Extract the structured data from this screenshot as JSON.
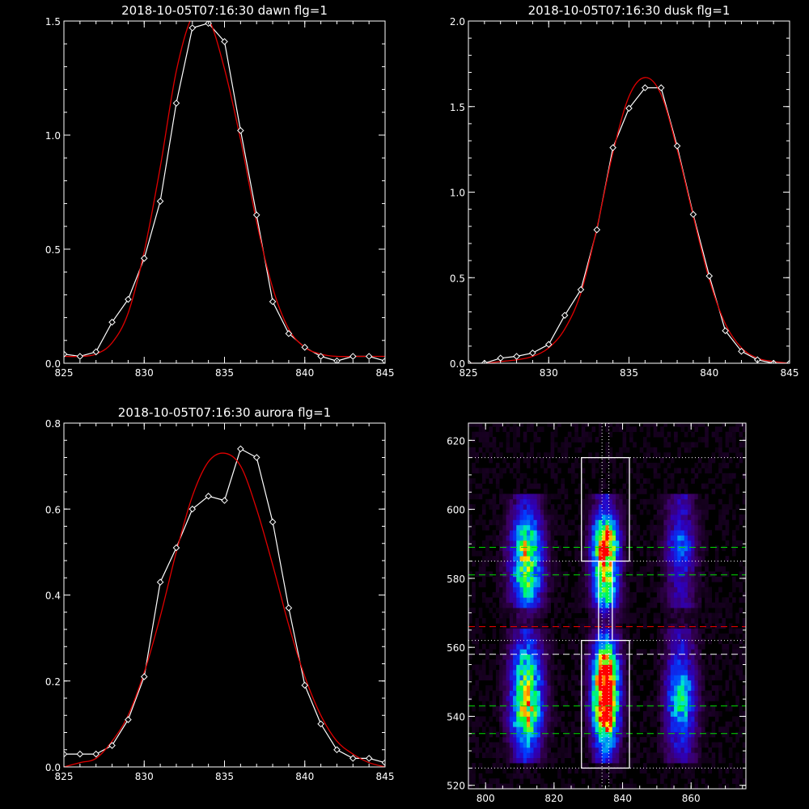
{
  "chart_data": [
    {
      "id": "dawn",
      "type": "line",
      "title": "2018-10-05T07:16:30 dawn flg=1",
      "xlim": [
        825,
        845
      ],
      "ylim": [
        0,
        1.5
      ],
      "xticks": [
        825,
        830,
        835,
        840,
        845
      ],
      "yticks": [
        0.0,
        0.5,
        1.0,
        1.5
      ],
      "ytick_labels": [
        "0.0",
        "0.5",
        "1.0",
        "1.5"
      ],
      "series": [
        {
          "role": "observed",
          "color": "#ffffff",
          "marker": "diamond",
          "x": [
            825,
            826,
            827,
            828,
            829,
            830,
            831,
            832,
            833,
            834,
            835,
            836,
            837,
            838,
            839,
            840,
            841,
            842,
            843,
            844,
            845
          ],
          "y": [
            0.04,
            0.03,
            0.05,
            0.18,
            0.28,
            0.46,
            0.71,
            1.14,
            1.47,
            1.49,
            1.41,
            1.02,
            0.65,
            0.27,
            0.13,
            0.07,
            0.03,
            0.01,
            0.03,
            0.03,
            0.01
          ]
        },
        {
          "role": "fit",
          "color": "#e00000",
          "x": [
            825,
            826,
            827,
            828,
            829,
            830,
            831,
            832,
            833,
            834,
            835,
            836,
            837,
            838,
            839,
            840,
            841,
            842,
            843,
            844,
            845
          ],
          "y": [
            0.03,
            0.03,
            0.04,
            0.09,
            0.22,
            0.49,
            0.86,
            1.28,
            1.52,
            1.51,
            1.29,
            0.98,
            0.62,
            0.33,
            0.15,
            0.07,
            0.04,
            0.03,
            0.03,
            0.03,
            0.03
          ]
        }
      ]
    },
    {
      "id": "dusk",
      "type": "line",
      "title": "2018-10-05T07:16:30 dusk flg=1",
      "xlim": [
        825,
        845
      ],
      "ylim": [
        0,
        2.0
      ],
      "xticks": [
        825,
        830,
        835,
        840,
        845
      ],
      "yticks": [
        0.0,
        0.5,
        1.0,
        1.5,
        2.0
      ],
      "ytick_labels": [
        "0.0",
        "0.5",
        "1.0",
        "1.5",
        "2.0"
      ],
      "series": [
        {
          "role": "observed",
          "color": "#ffffff",
          "marker": "diamond",
          "x": [
            825,
            826,
            827,
            828,
            829,
            830,
            831,
            832,
            833,
            834,
            835,
            836,
            837,
            838,
            839,
            840,
            841,
            842,
            843,
            844,
            845
          ],
          "y": [
            0.0,
            0.0,
            0.03,
            0.04,
            0.06,
            0.11,
            0.28,
            0.43,
            0.78,
            1.26,
            1.49,
            1.61,
            1.61,
            1.27,
            0.87,
            0.51,
            0.19,
            0.07,
            0.02,
            0.0,
            0.0
          ]
        },
        {
          "role": "fit",
          "color": "#e00000",
          "x": [
            825,
            826,
            827,
            828,
            829,
            830,
            831,
            832,
            833,
            834,
            835,
            836,
            837,
            838,
            839,
            840,
            841,
            842,
            843,
            844,
            845
          ],
          "y": [
            0.0,
            0.0,
            0.01,
            0.02,
            0.04,
            0.09,
            0.2,
            0.41,
            0.79,
            1.23,
            1.56,
            1.67,
            1.57,
            1.25,
            0.86,
            0.49,
            0.23,
            0.09,
            0.03,
            0.01,
            0.0
          ]
        }
      ]
    },
    {
      "id": "aurora",
      "type": "line",
      "title": "2018-10-05T07:16:30 aurora flg=1",
      "xlim": [
        825,
        845
      ],
      "ylim": [
        0,
        0.8
      ],
      "xticks": [
        825,
        830,
        835,
        840,
        845
      ],
      "yticks": [
        0.0,
        0.2,
        0.4,
        0.6,
        0.8
      ],
      "ytick_labels": [
        "0.0",
        "0.2",
        "0.4",
        "0.6",
        "0.8"
      ],
      "series": [
        {
          "role": "observed",
          "color": "#ffffff",
          "marker": "diamond",
          "x": [
            825,
            826,
            827,
            828,
            829,
            830,
            831,
            832,
            833,
            834,
            835,
            836,
            837,
            838,
            839,
            840,
            841,
            842,
            843,
            844,
            845
          ],
          "y": [
            0.03,
            0.03,
            0.03,
            0.05,
            0.11,
            0.21,
            0.43,
            0.51,
            0.6,
            0.63,
            0.62,
            0.74,
            0.72,
            0.57,
            0.37,
            0.19,
            0.1,
            0.04,
            0.02,
            0.02,
            0.01
          ]
        },
        {
          "role": "fit",
          "color": "#e00000",
          "x": [
            825,
            826,
            827,
            828,
            829,
            830,
            831,
            832,
            833,
            834,
            835,
            836,
            837,
            838,
            839,
            840,
            841,
            842,
            843,
            844,
            845
          ],
          "y": [
            0.0,
            0.01,
            0.02,
            0.06,
            0.12,
            0.22,
            0.35,
            0.5,
            0.63,
            0.71,
            0.73,
            0.7,
            0.6,
            0.47,
            0.33,
            0.21,
            0.12,
            0.06,
            0.03,
            0.01,
            0.0
          ]
        }
      ]
    },
    {
      "id": "image",
      "type": "heatmap",
      "title": "",
      "xlim": [
        795,
        876
      ],
      "ylim": [
        519,
        625
      ],
      "xticks": [
        800,
        820,
        840,
        860
      ],
      "yticks": [
        520,
        540,
        560,
        580,
        600,
        620
      ],
      "colormap": "rainbow (black-purple-blue-cyan-green-yellow-red)",
      "emission_columns": [
        {
          "x": 812,
          "half_width": 3.2,
          "bands": [
            {
              "y": 542,
              "sigma": 7,
              "amp": 0.6
            },
            {
              "y": 555,
              "sigma": 5,
              "amp": 0.3
            },
            {
              "y": 588,
              "sigma": 6,
              "amp": 0.55
            },
            {
              "y": 577,
              "sigma": 4,
              "amp": 0.28
            }
          ]
        },
        {
          "x": 835,
          "half_width": 2.6,
          "bands": [
            {
              "y": 543,
              "sigma": 7,
              "amp": 1.0
            },
            {
              "y": 555,
              "sigma": 5,
              "amp": 0.6
            },
            {
              "y": 590,
              "sigma": 5,
              "amp": 0.85
            },
            {
              "y": 578,
              "sigma": 5,
              "amp": 0.5
            }
          ]
        },
        {
          "x": 857,
          "half_width": 3.0,
          "bands": [
            {
              "y": 545,
              "sigma": 7,
              "amp": 0.38
            },
            {
              "y": 589,
              "sigma": 4,
              "amp": 0.2
            }
          ]
        }
      ],
      "boxes": [
        {
          "x": [
            828,
            842
          ],
          "y": [
            525,
            562
          ]
        },
        {
          "x": [
            828,
            842
          ],
          "y": [
            585,
            615
          ]
        },
        {
          "x": [
            833,
            837
          ],
          "y": [
            562,
            585
          ]
        }
      ],
      "vertical_dotted_lines": [
        834,
        836
      ],
      "horizontal_dotted_lines": [
        525,
        615,
        585,
        562
      ],
      "green_dashed_lines": [
        535,
        543,
        581,
        589
      ],
      "white_dashed_lines": [
        558
      ],
      "red_dashed_lines": [
        566
      ]
    }
  ]
}
